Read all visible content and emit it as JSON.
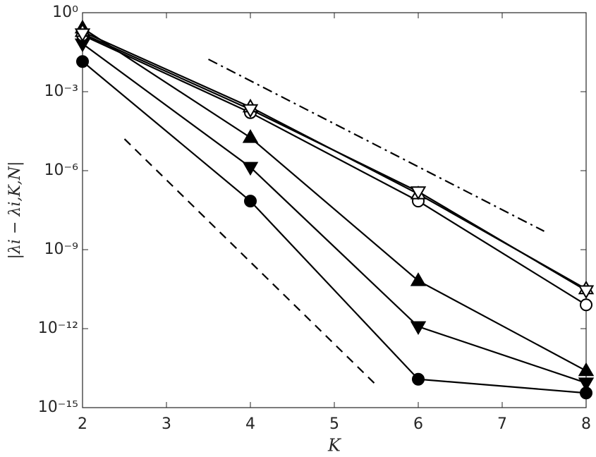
{
  "chart_data": {
    "type": "line",
    "xlabel": "K",
    "ylabel": "|λi − λi,K,N|",
    "x": [
      2,
      4,
      6,
      8
    ],
    "xlim": [
      2,
      8
    ],
    "xticks": [
      2,
      3,
      4,
      5,
      6,
      7,
      8
    ],
    "ylim": [
      1e-15,
      1
    ],
    "yscale": "log",
    "yticks": [
      {
        "value": 1,
        "label": "10⁰"
      },
      {
        "value": 0.001,
        "label": "10⁻³"
      },
      {
        "value": 1e-06,
        "label": "10⁻⁶"
      },
      {
        "value": 1e-09,
        "label": "10⁻⁹"
      },
      {
        "value": 1e-12,
        "label": "10⁻¹²"
      },
      {
        "value": 1e-15,
        "label": "10⁻¹⁵"
      }
    ],
    "series": [
      {
        "color": "#000000",
        "marker": "circle",
        "filled": true,
        "values": [
          0.014,
          7e-08,
          1.2e-14,
          3.6e-15
        ]
      },
      {
        "color": "#000000",
        "marker": "triangle-down",
        "filled": true,
        "values": [
          0.066,
          1.35e-06,
          1.2e-12,
          8.7e-15
        ]
      },
      {
        "color": "#000000",
        "marker": "triangle-up",
        "filled": true,
        "values": [
          0.26,
          1.8e-05,
          6.6e-11,
          2.5e-14
        ]
      },
      {
        "color": "#000000",
        "marker": "circle",
        "filled": false,
        "values": [
          0.14,
          0.00016,
          7e-08,
          8e-12
        ]
      },
      {
        "color": "#000000",
        "marker": "triangle-up",
        "filled": false,
        "values": [
          0.19,
          0.00026,
          1.3e-07,
          3.2e-11
        ]
      },
      {
        "color": "#000000",
        "marker": "triangle-down",
        "filled": false,
        "values": [
          0.16,
          0.00021,
          1.6e-07,
          2.8e-11
        ]
      },
      {
        "color": "#000000",
        "style": "dashdot",
        "x": [
          3.5,
          7.5
        ],
        "values": [
          0.017,
          5e-09
        ]
      },
      {
        "color": "#000000",
        "style": "dashed",
        "x": [
          2.5,
          5.5
        ],
        "values": [
          1.6e-05,
          7.2e-15
        ]
      }
    ]
  }
}
